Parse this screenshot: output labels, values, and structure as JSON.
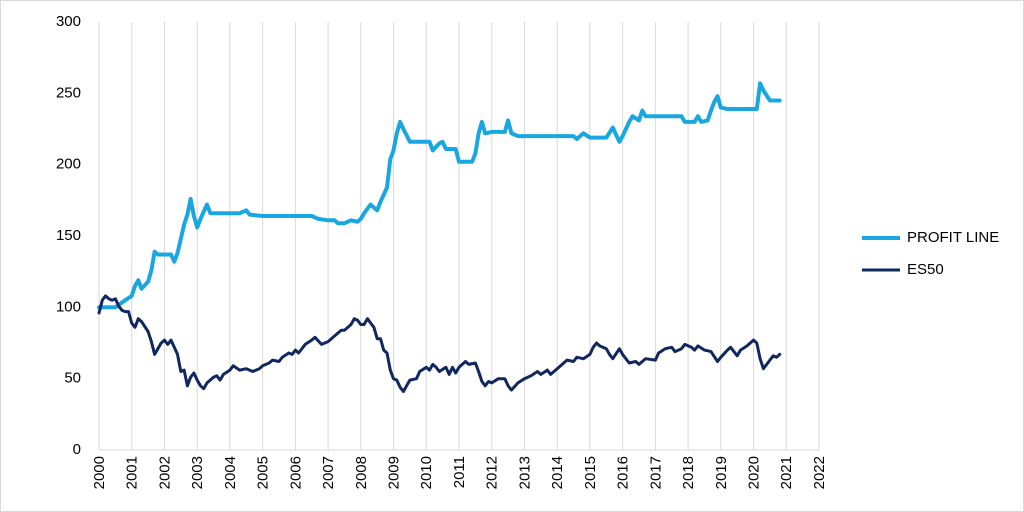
{
  "chart_data": {
    "type": "line",
    "title": "",
    "xlabel": "",
    "ylabel": "",
    "xlim": [
      2000,
      2022
    ],
    "ylim": [
      0,
      300
    ],
    "x_ticks": [
      "2000",
      "2001",
      "2002",
      "2003",
      "2004",
      "2005",
      "2006",
      "2007",
      "2008",
      "2009",
      "2010",
      "2011",
      "2012",
      "2013",
      "2014",
      "2015",
      "2016",
      "2017",
      "2018",
      "2019",
      "2020",
      "2021",
      "2022"
    ],
    "y_ticks": [
      "0",
      "50",
      "100",
      "150",
      "200",
      "250",
      "300"
    ],
    "grid": "vertical",
    "legend_position": "right",
    "series": [
      {
        "name": "PROFIT LINE",
        "color": "#1aa7e1",
        "points": [
          [
            2000.0,
            100
          ],
          [
            2000.5,
            100
          ],
          [
            2000.8,
            105
          ],
          [
            2001.0,
            108
          ],
          [
            2001.1,
            115
          ],
          [
            2001.2,
            119
          ],
          [
            2001.3,
            113
          ],
          [
            2001.5,
            118
          ],
          [
            2001.6,
            126
          ],
          [
            2001.7,
            139
          ],
          [
            2001.8,
            137
          ],
          [
            2002.0,
            137
          ],
          [
            2002.2,
            137
          ],
          [
            2002.3,
            132
          ],
          [
            2002.4,
            138
          ],
          [
            2002.5,
            148
          ],
          [
            2002.6,
            158
          ],
          [
            2002.7,
            165
          ],
          [
            2002.8,
            176
          ],
          [
            2002.9,
            164
          ],
          [
            2003.0,
            156
          ],
          [
            2003.1,
            162
          ],
          [
            2003.2,
            167
          ],
          [
            2003.3,
            172
          ],
          [
            2003.4,
            166
          ],
          [
            2004.0,
            166
          ],
          [
            2004.3,
            166
          ],
          [
            2004.5,
            168
          ],
          [
            2004.6,
            165
          ],
          [
            2005.0,
            164
          ],
          [
            2006.0,
            164
          ],
          [
            2006.5,
            164
          ],
          [
            2006.7,
            162
          ],
          [
            2007.0,
            161
          ],
          [
            2007.2,
            161
          ],
          [
            2007.3,
            159
          ],
          [
            2007.5,
            159
          ],
          [
            2007.7,
            161
          ],
          [
            2007.9,
            160
          ],
          [
            2008.0,
            162
          ],
          [
            2008.1,
            166
          ],
          [
            2008.3,
            172
          ],
          [
            2008.4,
            170
          ],
          [
            2008.5,
            168
          ],
          [
            2008.6,
            174
          ],
          [
            2008.8,
            184
          ],
          [
            2008.9,
            204
          ],
          [
            2009.0,
            210
          ],
          [
            2009.1,
            222
          ],
          [
            2009.2,
            230
          ],
          [
            2009.3,
            225
          ],
          [
            2009.5,
            216
          ],
          [
            2010.0,
            216
          ],
          [
            2010.1,
            216
          ],
          [
            2010.2,
            210
          ],
          [
            2010.4,
            215
          ],
          [
            2010.5,
            216
          ],
          [
            2010.6,
            211
          ],
          [
            2010.9,
            211
          ],
          [
            2011.0,
            202
          ],
          [
            2011.4,
            202
          ],
          [
            2011.5,
            208
          ],
          [
            2011.6,
            222
          ],
          [
            2011.7,
            230
          ],
          [
            2011.8,
            222
          ],
          [
            2012.0,
            223
          ],
          [
            2012.4,
            223
          ],
          [
            2012.5,
            231
          ],
          [
            2012.6,
            222
          ],
          [
            2012.8,
            220
          ],
          [
            2013.0,
            220
          ],
          [
            2014.5,
            220
          ],
          [
            2014.6,
            218
          ],
          [
            2014.8,
            222
          ],
          [
            2015.0,
            219
          ],
          [
            2015.5,
            219
          ],
          [
            2015.7,
            226
          ],
          [
            2015.9,
            216
          ],
          [
            2016.0,
            220
          ],
          [
            2016.2,
            230
          ],
          [
            2016.3,
            234
          ],
          [
            2016.5,
            231
          ],
          [
            2016.6,
            238
          ],
          [
            2016.7,
            234
          ],
          [
            2017.0,
            234
          ],
          [
            2017.8,
            234
          ],
          [
            2017.9,
            230
          ],
          [
            2018.2,
            230
          ],
          [
            2018.3,
            234
          ],
          [
            2018.4,
            230
          ],
          [
            2018.6,
            231
          ],
          [
            2018.7,
            238
          ],
          [
            2018.8,
            244
          ],
          [
            2018.9,
            248
          ],
          [
            2019.0,
            240
          ],
          [
            2019.2,
            239
          ],
          [
            2020.1,
            239
          ],
          [
            2020.2,
            257
          ],
          [
            2020.3,
            252
          ],
          [
            2020.5,
            245
          ],
          [
            2020.8,
            245
          ]
        ]
      },
      {
        "name": "ES50",
        "color": "#10275f",
        "points": [
          [
            2000.0,
            96
          ],
          [
            2000.1,
            105
          ],
          [
            2000.2,
            108
          ],
          [
            2000.3,
            106
          ],
          [
            2000.4,
            105
          ],
          [
            2000.5,
            106
          ],
          [
            2000.6,
            101
          ],
          [
            2000.7,
            98
          ],
          [
            2000.8,
            97
          ],
          [
            2000.9,
            97
          ],
          [
            2001.0,
            89
          ],
          [
            2001.1,
            86
          ],
          [
            2001.2,
            92
          ],
          [
            2001.3,
            90
          ],
          [
            2001.5,
            83
          ],
          [
            2001.6,
            76
          ],
          [
            2001.7,
            67
          ],
          [
            2001.8,
            71
          ],
          [
            2001.9,
            75
          ],
          [
            2002.0,
            77
          ],
          [
            2002.1,
            74
          ],
          [
            2002.2,
            77
          ],
          [
            2002.3,
            72
          ],
          [
            2002.4,
            67
          ],
          [
            2002.5,
            55
          ],
          [
            2002.6,
            56
          ],
          [
            2002.7,
            45
          ],
          [
            2002.8,
            51
          ],
          [
            2002.9,
            54
          ],
          [
            2003.0,
            49
          ],
          [
            2003.1,
            45
          ],
          [
            2003.2,
            43
          ],
          [
            2003.3,
            47
          ],
          [
            2003.5,
            51
          ],
          [
            2003.6,
            52
          ],
          [
            2003.7,
            49
          ],
          [
            2003.8,
            53
          ],
          [
            2004.0,
            56
          ],
          [
            2004.1,
            59
          ],
          [
            2004.3,
            56
          ],
          [
            2004.5,
            57
          ],
          [
            2004.7,
            55
          ],
          [
            2004.9,
            57
          ],
          [
            2005.0,
            59
          ],
          [
            2005.2,
            61
          ],
          [
            2005.3,
            63
          ],
          [
            2005.5,
            62
          ],
          [
            2005.6,
            65
          ],
          [
            2005.8,
            68
          ],
          [
            2005.9,
            67
          ],
          [
            2006.0,
            70
          ],
          [
            2006.1,
            68
          ],
          [
            2006.3,
            74
          ],
          [
            2006.5,
            77
          ],
          [
            2006.6,
            79
          ],
          [
            2006.8,
            74
          ],
          [
            2007.0,
            76
          ],
          [
            2007.2,
            80
          ],
          [
            2007.4,
            84
          ],
          [
            2007.5,
            84
          ],
          [
            2007.7,
            88
          ],
          [
            2007.8,
            92
          ],
          [
            2007.9,
            91
          ],
          [
            2008.0,
            88
          ],
          [
            2008.1,
            88
          ],
          [
            2008.2,
            92
          ],
          [
            2008.3,
            89
          ],
          [
            2008.4,
            86
          ],
          [
            2008.5,
            78
          ],
          [
            2008.6,
            78
          ],
          [
            2008.7,
            70
          ],
          [
            2008.8,
            68
          ],
          [
            2008.9,
            56
          ],
          [
            2009.0,
            50
          ],
          [
            2009.1,
            49
          ],
          [
            2009.2,
            44
          ],
          [
            2009.3,
            41
          ],
          [
            2009.4,
            45
          ],
          [
            2009.5,
            49
          ],
          [
            2009.7,
            50
          ],
          [
            2009.8,
            55
          ],
          [
            2010.0,
            58
          ],
          [
            2010.1,
            56
          ],
          [
            2010.2,
            60
          ],
          [
            2010.3,
            58
          ],
          [
            2010.4,
            55
          ],
          [
            2010.6,
            58
          ],
          [
            2010.7,
            53
          ],
          [
            2010.8,
            58
          ],
          [
            2010.9,
            54
          ],
          [
            2011.0,
            58
          ],
          [
            2011.2,
            62
          ],
          [
            2011.3,
            60
          ],
          [
            2011.5,
            61
          ],
          [
            2011.6,
            55
          ],
          [
            2011.7,
            48
          ],
          [
            2011.8,
            45
          ],
          [
            2011.9,
            48
          ],
          [
            2012.0,
            47
          ],
          [
            2012.2,
            50
          ],
          [
            2012.4,
            50
          ],
          [
            2012.5,
            45
          ],
          [
            2012.6,
            42
          ],
          [
            2012.8,
            47
          ],
          [
            2013.0,
            50
          ],
          [
            2013.2,
            52
          ],
          [
            2013.4,
            55
          ],
          [
            2013.5,
            53
          ],
          [
            2013.7,
            56
          ],
          [
            2013.8,
            53
          ],
          [
            2014.0,
            57
          ],
          [
            2014.2,
            61
          ],
          [
            2014.3,
            63
          ],
          [
            2014.5,
            62
          ],
          [
            2014.6,
            65
          ],
          [
            2014.8,
            64
          ],
          [
            2015.0,
            67
          ],
          [
            2015.1,
            72
          ],
          [
            2015.2,
            75
          ],
          [
            2015.3,
            73
          ],
          [
            2015.5,
            71
          ],
          [
            2015.6,
            67
          ],
          [
            2015.7,
            64
          ],
          [
            2015.9,
            71
          ],
          [
            2016.0,
            67
          ],
          [
            2016.2,
            61
          ],
          [
            2016.4,
            62
          ],
          [
            2016.5,
            60
          ],
          [
            2016.7,
            64
          ],
          [
            2017.0,
            63
          ],
          [
            2017.1,
            68
          ],
          [
            2017.3,
            71
          ],
          [
            2017.5,
            72
          ],
          [
            2017.6,
            69
          ],
          [
            2017.8,
            71
          ],
          [
            2017.9,
            74
          ],
          [
            2018.1,
            72
          ],
          [
            2018.2,
            70
          ],
          [
            2018.3,
            73
          ],
          [
            2018.5,
            70
          ],
          [
            2018.7,
            69
          ],
          [
            2018.9,
            62
          ],
          [
            2019.0,
            65
          ],
          [
            2019.2,
            70
          ],
          [
            2019.3,
            72
          ],
          [
            2019.5,
            66
          ],
          [
            2019.6,
            70
          ],
          [
            2019.8,
            73
          ],
          [
            2020.0,
            77
          ],
          [
            2020.1,
            75
          ],
          [
            2020.2,
            64
          ],
          [
            2020.3,
            57
          ],
          [
            2020.5,
            63
          ],
          [
            2020.6,
            66
          ],
          [
            2020.7,
            65
          ],
          [
            2020.8,
            67
          ]
        ]
      }
    ]
  }
}
